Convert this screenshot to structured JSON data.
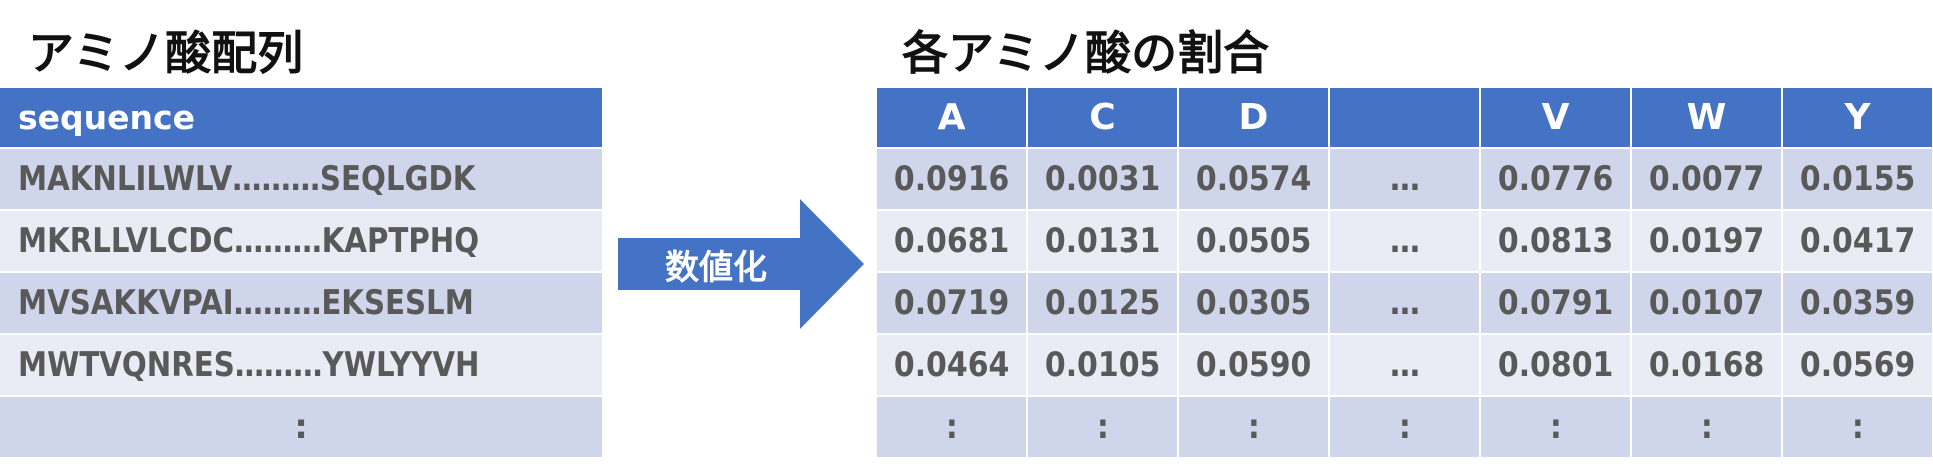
{
  "left_title": "アミノ酸配列",
  "right_title": "各アミノ酸の割合",
  "sequence_table": {
    "header": "sequence",
    "rows": [
      "MAKNLILWLV………SEQLGDK",
      "MKRLLVLCDC………KAPTPHQ",
      "MVSAKKVPAI………EKSESLM",
      "MWTVQNRES………YWLYYVH",
      ":"
    ]
  },
  "arrow_label": "数値化",
  "composition_table": {
    "headers": [
      "A",
      "C",
      "D",
      "",
      "V",
      "W",
      "Y"
    ],
    "rows": [
      [
        "0.0916",
        "0.0031",
        "0.0574",
        "…",
        "0.0776",
        "0.0077",
        "0.0155"
      ],
      [
        "0.0681",
        "0.0131",
        "0.0505",
        "…",
        "0.0813",
        "0.0197",
        "0.0417"
      ],
      [
        "0.0719",
        "0.0125",
        "0.0305",
        "…",
        "0.0791",
        "0.0107",
        "0.0359"
      ],
      [
        "0.0464",
        "0.0105",
        "0.0590",
        "…",
        "0.0801",
        "0.0168",
        "0.0569"
      ],
      [
        ":",
        ":",
        ":",
        ":",
        ":",
        ":",
        ":"
      ]
    ]
  },
  "colors": {
    "header_blue": "#4472c4",
    "band_dark": "#cfd5ea",
    "band_light": "#e9ebf5",
    "text_gray": "#595959"
  }
}
